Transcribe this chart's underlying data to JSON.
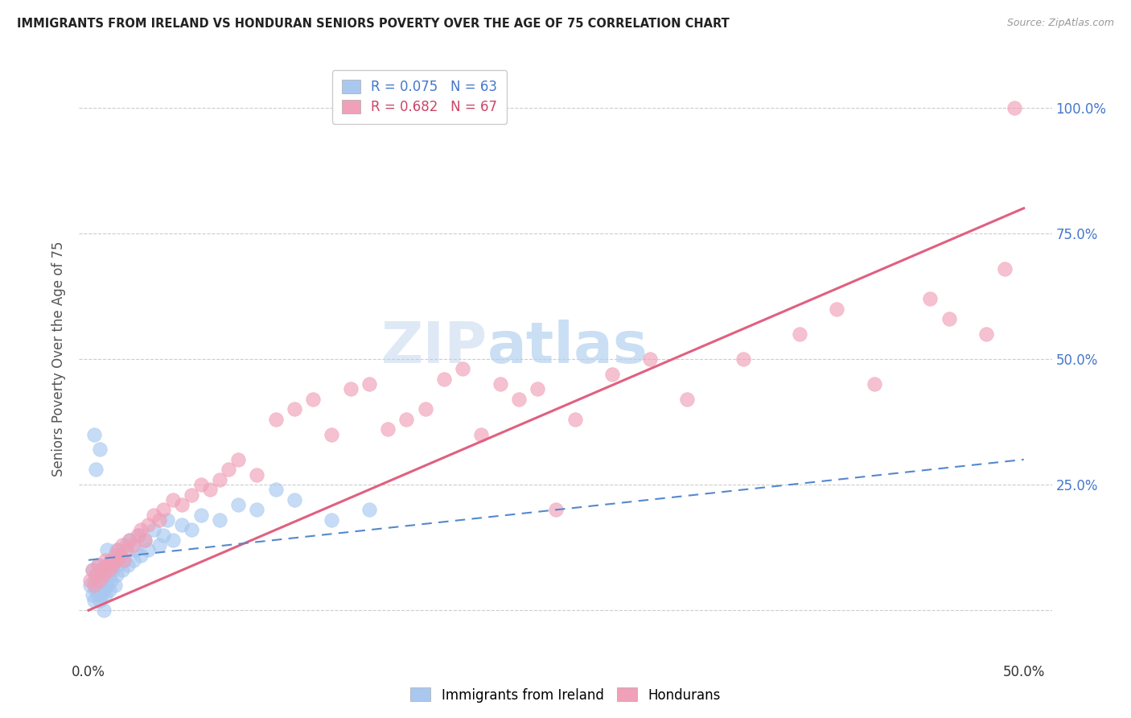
{
  "title": "IMMIGRANTS FROM IRELAND VS HONDURAN SENIORS POVERTY OVER THE AGE OF 75 CORRELATION CHART",
  "source": "Source: ZipAtlas.com",
  "ylabel": "Seniors Poverty Over the Age of 75",
  "legend_label1": "Immigrants from Ireland",
  "legend_label2": "Hondurans",
  "r1": 0.075,
  "n1": 63,
  "r2": 0.682,
  "n2": 67,
  "color_blue": "#a8c8f0",
  "color_pink": "#f0a0b8",
  "color_blue_line": "#5588cc",
  "color_pink_line": "#e06080",
  "watermark_zip": "ZIP",
  "watermark_atlas": "atlas",
  "blue_scatter_x": [
    0.001,
    0.002,
    0.002,
    0.003,
    0.003,
    0.004,
    0.004,
    0.005,
    0.005,
    0.005,
    0.006,
    0.006,
    0.006,
    0.007,
    0.007,
    0.007,
    0.008,
    0.008,
    0.009,
    0.009,
    0.01,
    0.01,
    0.01,
    0.011,
    0.011,
    0.012,
    0.012,
    0.013,
    0.014,
    0.015,
    0.015,
    0.016,
    0.017,
    0.018,
    0.019,
    0.02,
    0.021,
    0.022,
    0.024,
    0.025,
    0.027,
    0.028,
    0.03,
    0.032,
    0.035,
    0.038,
    0.04,
    0.042,
    0.045,
    0.05,
    0.055,
    0.06,
    0.07,
    0.08,
    0.09,
    0.1,
    0.11,
    0.13,
    0.15,
    0.003,
    0.004,
    0.006,
    0.008
  ],
  "blue_scatter_y": [
    0.05,
    0.03,
    0.08,
    0.02,
    0.06,
    0.04,
    0.07,
    0.03,
    0.05,
    0.09,
    0.02,
    0.04,
    0.06,
    0.03,
    0.05,
    0.08,
    0.04,
    0.07,
    0.03,
    0.06,
    0.05,
    0.08,
    0.12,
    0.04,
    0.07,
    0.06,
    0.1,
    0.08,
    0.05,
    0.07,
    0.12,
    0.09,
    0.11,
    0.08,
    0.1,
    0.13,
    0.09,
    0.14,
    0.1,
    0.12,
    0.15,
    0.11,
    0.14,
    0.12,
    0.16,
    0.13,
    0.15,
    0.18,
    0.14,
    0.17,
    0.16,
    0.19,
    0.18,
    0.21,
    0.2,
    0.24,
    0.22,
    0.18,
    0.2,
    0.35,
    0.28,
    0.32,
    0.0
  ],
  "pink_scatter_x": [
    0.001,
    0.002,
    0.003,
    0.004,
    0.005,
    0.006,
    0.007,
    0.008,
    0.009,
    0.01,
    0.011,
    0.012,
    0.013,
    0.014,
    0.015,
    0.016,
    0.017,
    0.018,
    0.019,
    0.02,
    0.022,
    0.024,
    0.026,
    0.028,
    0.03,
    0.032,
    0.035,
    0.038,
    0.04,
    0.045,
    0.05,
    0.055,
    0.06,
    0.065,
    0.07,
    0.075,
    0.08,
    0.09,
    0.1,
    0.11,
    0.12,
    0.13,
    0.14,
    0.15,
    0.16,
    0.17,
    0.18,
    0.19,
    0.2,
    0.21,
    0.22,
    0.23,
    0.24,
    0.25,
    0.26,
    0.28,
    0.3,
    0.32,
    0.35,
    0.38,
    0.4,
    0.42,
    0.45,
    0.46,
    0.48,
    0.49,
    0.495
  ],
  "pink_scatter_y": [
    0.06,
    0.08,
    0.05,
    0.07,
    0.09,
    0.06,
    0.08,
    0.07,
    0.1,
    0.09,
    0.08,
    0.1,
    0.09,
    0.11,
    0.1,
    0.12,
    0.11,
    0.13,
    0.1,
    0.12,
    0.14,
    0.13,
    0.15,
    0.16,
    0.14,
    0.17,
    0.19,
    0.18,
    0.2,
    0.22,
    0.21,
    0.23,
    0.25,
    0.24,
    0.26,
    0.28,
    0.3,
    0.27,
    0.38,
    0.4,
    0.42,
    0.35,
    0.44,
    0.45,
    0.36,
    0.38,
    0.4,
    0.46,
    0.48,
    0.35,
    0.45,
    0.42,
    0.44,
    0.2,
    0.38,
    0.47,
    0.5,
    0.42,
    0.5,
    0.55,
    0.6,
    0.45,
    0.62,
    0.58,
    0.55,
    0.68,
    1.0
  ],
  "pink_line_x": [
    0.0,
    0.5
  ],
  "pink_line_y": [
    0.0,
    0.8
  ],
  "blue_line_x": [
    0.0,
    0.5
  ],
  "blue_line_y": [
    0.1,
    0.3
  ],
  "xlim": [
    -0.005,
    0.515
  ],
  "ylim": [
    -0.1,
    1.1
  ],
  "yticks": [
    0.0,
    0.25,
    0.5,
    0.75,
    1.0
  ],
  "yticklabels": [
    "",
    "25.0%",
    "50.0%",
    "75.0%",
    "100.0%"
  ],
  "xticks": [
    0.0,
    0.1,
    0.2,
    0.3,
    0.4,
    0.5
  ],
  "xticklabels": [
    "0.0%",
    "",
    "",
    "",
    "",
    "50.0%"
  ]
}
